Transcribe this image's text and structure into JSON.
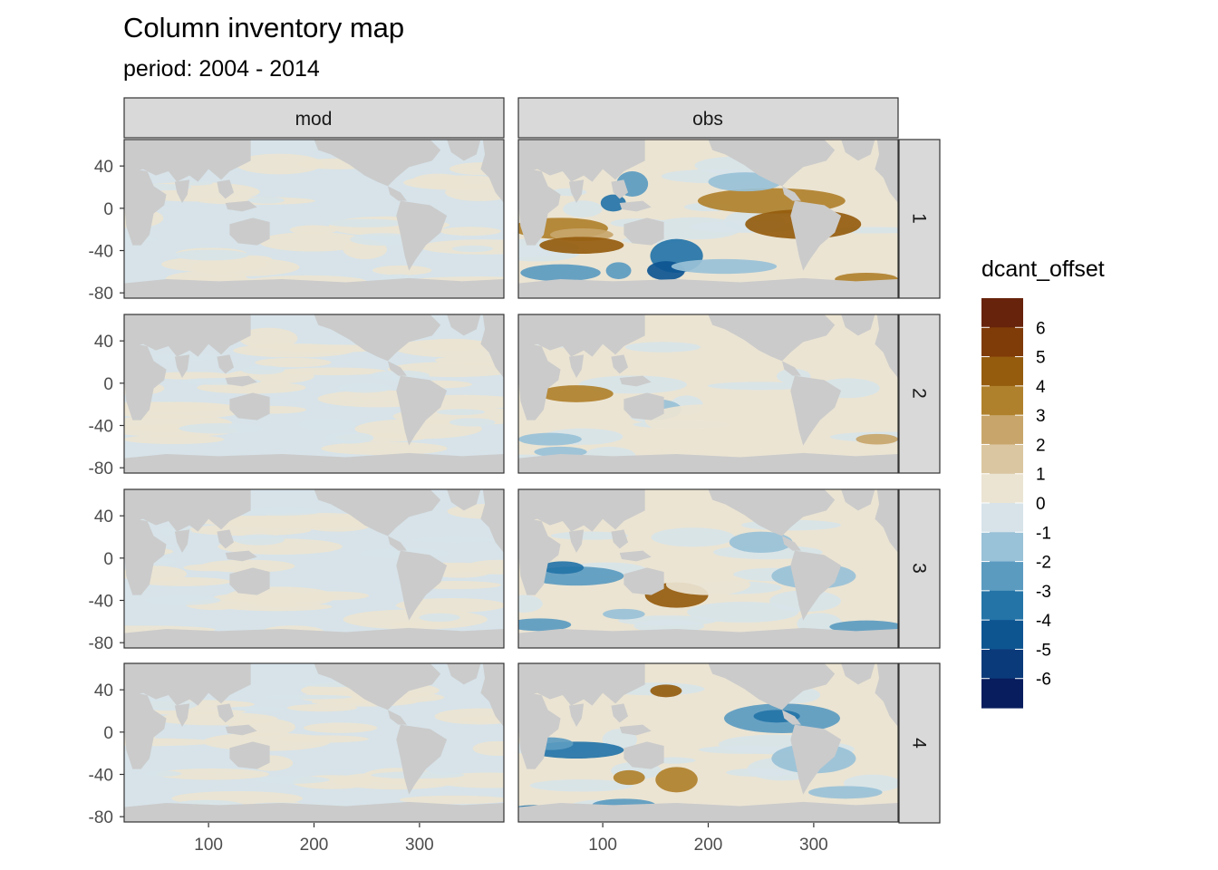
{
  "chart_data": {
    "type": "heatmap",
    "title": "Column inventory map",
    "subtitle": "period: 2004 - 2014",
    "xlabel": "",
    "ylabel": "",
    "facet_columns": [
      "mod",
      "obs"
    ],
    "facet_rows": [
      "1",
      "2",
      "3",
      "4"
    ],
    "x_ticks": [
      100,
      200,
      300
    ],
    "y_ticks": [
      40,
      0,
      -40,
      -80
    ],
    "xlim": [
      20,
      380
    ],
    "ylim": [
      -85,
      65
    ],
    "legend": {
      "title": "dcant_offset",
      "placement": "right",
      "labels": [
        "6",
        "5",
        "4",
        "3",
        "2",
        "1",
        "0",
        "-1",
        "-2",
        "-3",
        "-4",
        "-5",
        "-6"
      ],
      "colors": [
        "#67230b",
        "#7f3b08",
        "#955c0e",
        "#b0812c",
        "#c8a66b",
        "#dac6a0",
        "#ebe4d3",
        "#d7e3e9",
        "#99c1d7",
        "#5b9bc0",
        "#2474a8",
        "#0d5591",
        "#0b3a7a",
        "#081d5e"
      ]
    },
    "panels": [
      {
        "facet_column": "mod",
        "facet_row": "1",
        "dominant_range": "-1 to 1"
      },
      {
        "facet_column": "obs",
        "facet_row": "1",
        "dominant_range": "-6 to 5"
      },
      {
        "facet_column": "mod",
        "facet_row": "2",
        "dominant_range": "-1 to 1"
      },
      {
        "facet_column": "obs",
        "facet_row": "2",
        "dominant_range": "-1 to 3"
      },
      {
        "facet_column": "mod",
        "facet_row": "3",
        "dominant_range": "-1 to 1"
      },
      {
        "facet_column": "obs",
        "facet_row": "3",
        "dominant_range": "-4 to 2"
      },
      {
        "facet_column": "mod",
        "facet_row": "4",
        "dominant_range": "-1 to 1"
      },
      {
        "facet_column": "obs",
        "facet_row": "4",
        "dominant_range": "-5 to 4"
      }
    ]
  },
  "colors": {
    "land": "#cbcbcb",
    "strip_fill": "#d9d9d9",
    "panel_border": "#333333"
  }
}
